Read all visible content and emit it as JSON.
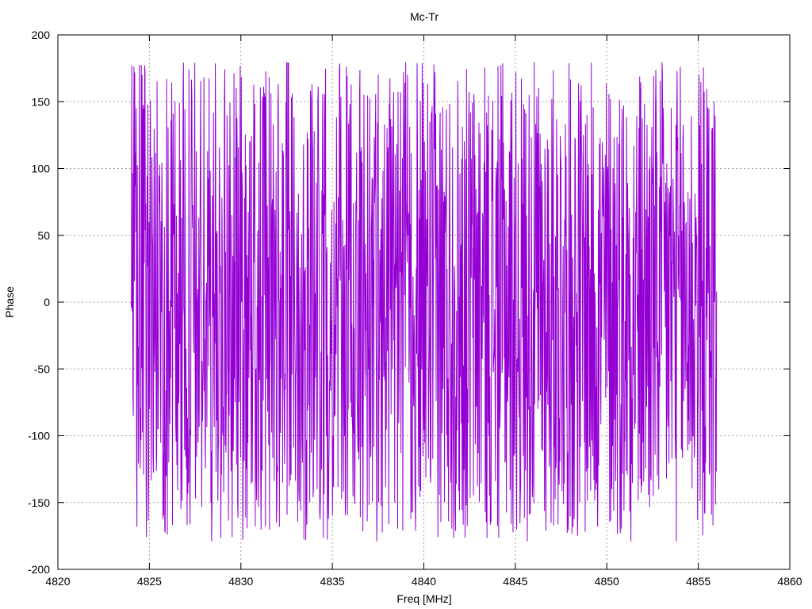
{
  "chart_data": {
    "type": "line",
    "title": "Mc-Tr",
    "xlabel": "Freq [MHz]",
    "ylabel": "Phase",
    "xlim": [
      4820,
      4860
    ],
    "ylim": [
      -200,
      200
    ],
    "xticks": [
      4820,
      4825,
      4830,
      4835,
      4840,
      4845,
      4850,
      4855,
      4860
    ],
    "yticks": [
      -200,
      -150,
      -100,
      -50,
      0,
      50,
      100,
      150,
      200
    ],
    "grid": true,
    "series": [
      {
        "color": "#9400d3",
        "x_start": 4824.0,
        "x_end": 4856.0,
        "point_count": 1600,
        "y_range": [
          -180,
          180
        ],
        "endpoints": [
          {
            "x": 4824.0,
            "y": 0
          },
          {
            "x": 4856.0,
            "y": 8
          }
        ]
      }
    ]
  }
}
